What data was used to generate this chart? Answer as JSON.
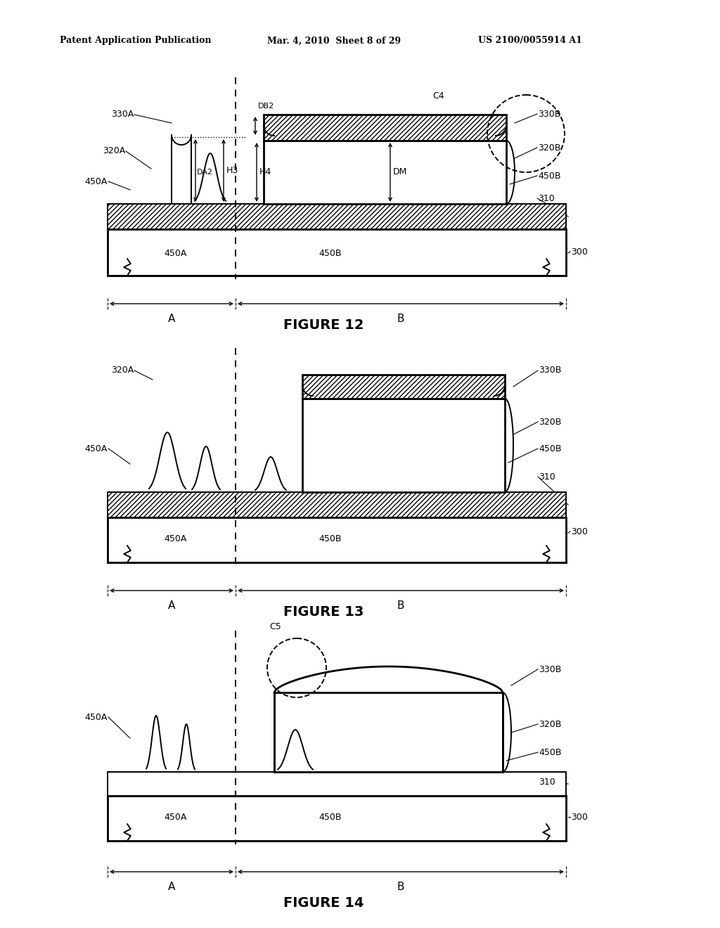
{
  "header_left": "Patent Application Publication",
  "header_mid": "Mar. 4, 2010  Sheet 8 of 29",
  "header_right": "US 2100/0055914 A1",
  "fig12_label": "FIGURE 12",
  "fig13_label": "FIGURE 13",
  "fig14_label": "FIGURE 14",
  "bg_color": "#ffffff"
}
